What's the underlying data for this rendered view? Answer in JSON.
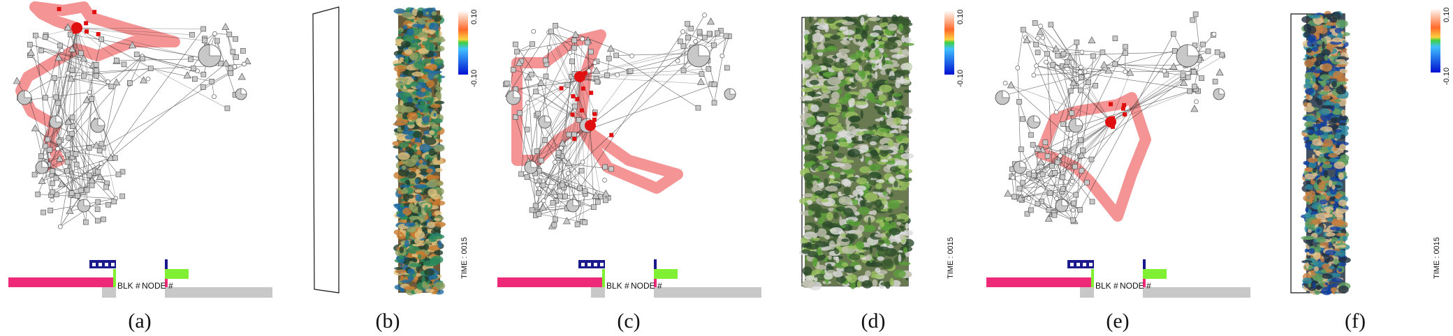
{
  "figure": {
    "captions": [
      "(a)",
      "(b)",
      "(c)",
      "(d)",
      "(e)",
      "(f)"
    ],
    "graph_labels": {
      "block": "BLK #",
      "node": "NODE #"
    },
    "render_labels": {
      "time": "TIME : 0015",
      "cbar_max": "0.10",
      "cbar_min": "-0.10"
    },
    "colors": {
      "highlight": "#f27070",
      "hub": "#e01010",
      "node": "#c8c8c8",
      "bar_pink": "#ee2a78",
      "bar_green": "#7ff032",
      "bar_gray": "#c8c8c8",
      "bar_navy": "#1a1a8c"
    }
  }
}
